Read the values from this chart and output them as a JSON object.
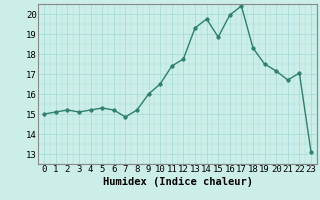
{
  "x": [
    0,
    1,
    2,
    3,
    4,
    5,
    6,
    7,
    8,
    9,
    10,
    11,
    12,
    13,
    14,
    15,
    16,
    17,
    18,
    19,
    20,
    21,
    22,
    23
  ],
  "y": [
    15.0,
    15.1,
    15.2,
    15.1,
    15.2,
    15.3,
    15.2,
    14.85,
    15.2,
    16.0,
    16.5,
    17.4,
    17.75,
    19.3,
    19.75,
    18.85,
    19.95,
    20.4,
    18.3,
    17.5,
    17.15,
    16.7,
    17.05,
    13.1
  ],
  "xlabel": "Humidex (Indice chaleur)",
  "ylim": [
    12.5,
    20.5
  ],
  "xlim": [
    -0.5,
    23.5
  ],
  "yticks": [
    13,
    14,
    15,
    16,
    17,
    18,
    19,
    20
  ],
  "xticks": [
    0,
    1,
    2,
    3,
    4,
    5,
    6,
    7,
    8,
    9,
    10,
    11,
    12,
    13,
    14,
    15,
    16,
    17,
    18,
    19,
    20,
    21,
    22,
    23
  ],
  "line_color": "#2e7f6f",
  "marker_color": "#2e7f6f",
  "bg_color": "#cceee8",
  "grid_color": "#aaddda",
  "xlabel_fontsize": 7.5,
  "tick_fontsize": 6.5,
  "line_width": 1.0,
  "marker_size": 2.5
}
